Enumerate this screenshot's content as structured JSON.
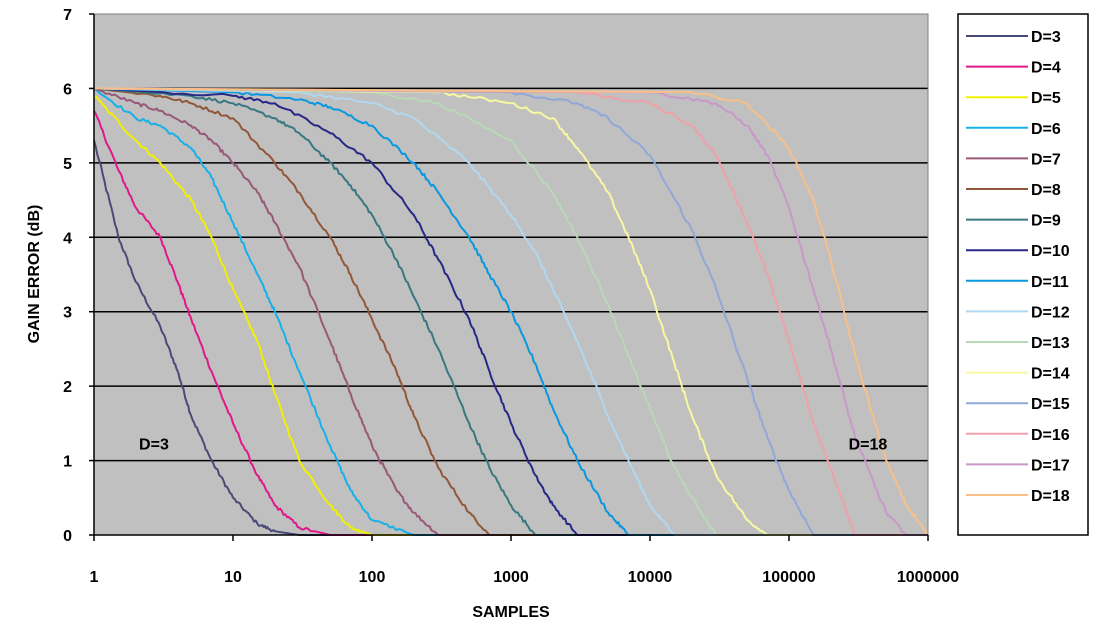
{
  "chart_data": {
    "type": "line",
    "title": "",
    "xlabel": "SAMPLES",
    "ylabel": "GAIN ERROR (dB)",
    "x_scale": "log",
    "xlim": [
      1,
      1000000
    ],
    "ylim": [
      0,
      7
    ],
    "x_ticks": [
      "1",
      "10",
      "100",
      "1000",
      "10000",
      "100000",
      "1000000"
    ],
    "y_ticks": [
      "0",
      "1",
      "2",
      "3",
      "4",
      "5",
      "6",
      "7"
    ],
    "grid": "horizontal",
    "background": "#c0c0c0",
    "legend_position": "right",
    "annotations": [
      {
        "text": "D=3",
        "x": 2.7,
        "y": 1.15
      },
      {
        "text": "D=18",
        "x": 370000,
        "y": 1.15
      }
    ],
    "series": [
      {
        "name": "D=3",
        "color": "#4a4a78",
        "x": [
          1,
          1.5,
          2,
          3,
          4,
          5,
          7,
          10,
          15,
          20,
          30
        ],
        "y": [
          5.3,
          4.0,
          3.4,
          2.8,
          2.2,
          1.6,
          1.0,
          0.5,
          0.15,
          0.05,
          0.0
        ]
      },
      {
        "name": "D=4",
        "color": "#e0188c",
        "x": [
          1,
          1.5,
          2,
          3,
          4,
          5,
          7,
          10,
          15,
          20,
          30,
          50
        ],
        "y": [
          5.7,
          4.9,
          4.4,
          4.0,
          3.4,
          2.9,
          2.2,
          1.5,
          0.8,
          0.4,
          0.1,
          0.0
        ]
      },
      {
        "name": "D=5",
        "color": "#f0f000",
        "x": [
          1,
          2,
          3,
          5,
          7,
          10,
          15,
          20,
          30,
          50,
          70,
          100
        ],
        "y": [
          5.9,
          5.3,
          5.0,
          4.5,
          4.0,
          3.3,
          2.6,
          1.9,
          1.0,
          0.4,
          0.1,
          0.0
        ]
      },
      {
        "name": "D=6",
        "color": "#18b0e8",
        "x": [
          1,
          2,
          3,
          5,
          7,
          10,
          15,
          20,
          30,
          50,
          70,
          100,
          200
        ],
        "y": [
          6.0,
          5.6,
          5.5,
          5.2,
          4.8,
          4.2,
          3.5,
          3.0,
          2.2,
          1.2,
          0.6,
          0.2,
          0.0
        ]
      },
      {
        "name": "D=7",
        "color": "#985878",
        "x": [
          1,
          2,
          3,
          5,
          7,
          10,
          15,
          20,
          30,
          50,
          70,
          100,
          150,
          200,
          300
        ],
        "y": [
          6.0,
          5.8,
          5.7,
          5.5,
          5.3,
          5.0,
          4.6,
          4.2,
          3.6,
          2.6,
          1.9,
          1.2,
          0.6,
          0.3,
          0.0
        ]
      },
      {
        "name": "D=8",
        "color": "#905838",
        "x": [
          1,
          3,
          5,
          10,
          20,
          30,
          50,
          70,
          100,
          150,
          200,
          300,
          500,
          700
        ],
        "y": [
          6.0,
          5.9,
          5.8,
          5.6,
          5.0,
          4.6,
          4.0,
          3.5,
          2.9,
          2.2,
          1.6,
          0.9,
          0.3,
          0.0
        ]
      },
      {
        "name": "D=9",
        "color": "#387880",
        "x": [
          1,
          5,
          10,
          20,
          30,
          50,
          70,
          100,
          150,
          200,
          300,
          500,
          700,
          1000,
          1500
        ],
        "y": [
          6.0,
          5.9,
          5.8,
          5.6,
          5.4,
          5.0,
          4.7,
          4.3,
          3.7,
          3.2,
          2.5,
          1.5,
          0.9,
          0.4,
          0.0
        ]
      },
      {
        "name": "D=10",
        "color": "#282888",
        "x": [
          1,
          10,
          20,
          50,
          100,
          200,
          300,
          500,
          700,
          1000,
          1500,
          2000,
          3000
        ],
        "y": [
          6.0,
          5.9,
          5.8,
          5.4,
          5.0,
          4.3,
          3.7,
          2.9,
          2.2,
          1.5,
          0.8,
          0.4,
          0.0
        ]
      },
      {
        "name": "D=11",
        "color": "#0898e0",
        "x": [
          1,
          10,
          30,
          50,
          100,
          200,
          300,
          500,
          700,
          1000,
          1500,
          2000,
          3000,
          5000,
          7000
        ],
        "y": [
          6.0,
          5.95,
          5.85,
          5.75,
          5.5,
          5.0,
          4.6,
          4.0,
          3.5,
          3.0,
          2.3,
          1.7,
          1.0,
          0.3,
          0.0
        ]
      },
      {
        "name": "D=12",
        "color": "#b0d8f0",
        "x": [
          1,
          30,
          100,
          200,
          500,
          1000,
          1500,
          2000,
          3000,
          5000,
          7000,
          10000,
          15000
        ],
        "y": [
          6.0,
          5.95,
          5.8,
          5.6,
          5.0,
          4.3,
          3.8,
          3.3,
          2.6,
          1.6,
          1.0,
          0.4,
          0.0
        ]
      },
      {
        "name": "D=13",
        "color": "#b8d8b8",
        "x": [
          1,
          100,
          300,
          1000,
          2000,
          3000,
          5000,
          7000,
          10000,
          15000,
          20000,
          30000
        ],
        "y": [
          6.0,
          5.95,
          5.8,
          5.3,
          4.6,
          4.0,
          3.1,
          2.4,
          1.7,
          0.9,
          0.5,
          0.0
        ]
      },
      {
        "name": "D=14",
        "color": "#f8f8a0",
        "x": [
          1,
          300,
          1000,
          2000,
          3000,
          5000,
          7000,
          10000,
          15000,
          20000,
          30000,
          50000,
          70000
        ],
        "y": [
          6.0,
          5.95,
          5.8,
          5.6,
          5.2,
          4.6,
          4.0,
          3.3,
          2.3,
          1.6,
          0.8,
          0.2,
          0.0
        ]
      },
      {
        "name": "D=15",
        "color": "#90a8d8",
        "x": [
          1,
          1000,
          3000,
          5000,
          10000,
          20000,
          30000,
          50000,
          70000,
          100000,
          150000
        ],
        "y": [
          6.0,
          5.95,
          5.8,
          5.6,
          5.1,
          4.1,
          3.3,
          2.1,
          1.3,
          0.6,
          0.0
        ]
      },
      {
        "name": "D=16",
        "color": "#f0a0a8",
        "x": [
          1,
          3000,
          10000,
          20000,
          30000,
          50000,
          70000,
          100000,
          150000,
          200000,
          300000
        ],
        "y": [
          6.0,
          5.95,
          5.8,
          5.5,
          5.1,
          4.2,
          3.5,
          2.6,
          1.5,
          0.9,
          0.0
        ]
      },
      {
        "name": "D=17",
        "color": "#c898c8",
        "x": [
          1,
          10000,
          30000,
          50000,
          70000,
          100000,
          150000,
          200000,
          300000,
          500000,
          700000
        ],
        "y": [
          6.0,
          5.95,
          5.8,
          5.5,
          5.1,
          4.4,
          3.3,
          2.5,
          1.3,
          0.3,
          0.0
        ]
      },
      {
        "name": "D=18",
        "color": "#f8c088",
        "x": [
          1,
          20000,
          50000,
          100000,
          150000,
          200000,
          300000,
          500000,
          700000,
          1000000
        ],
        "y": [
          6.0,
          5.95,
          5.8,
          5.2,
          4.5,
          3.7,
          2.4,
          1.0,
          0.4,
          0.0
        ]
      }
    ]
  }
}
